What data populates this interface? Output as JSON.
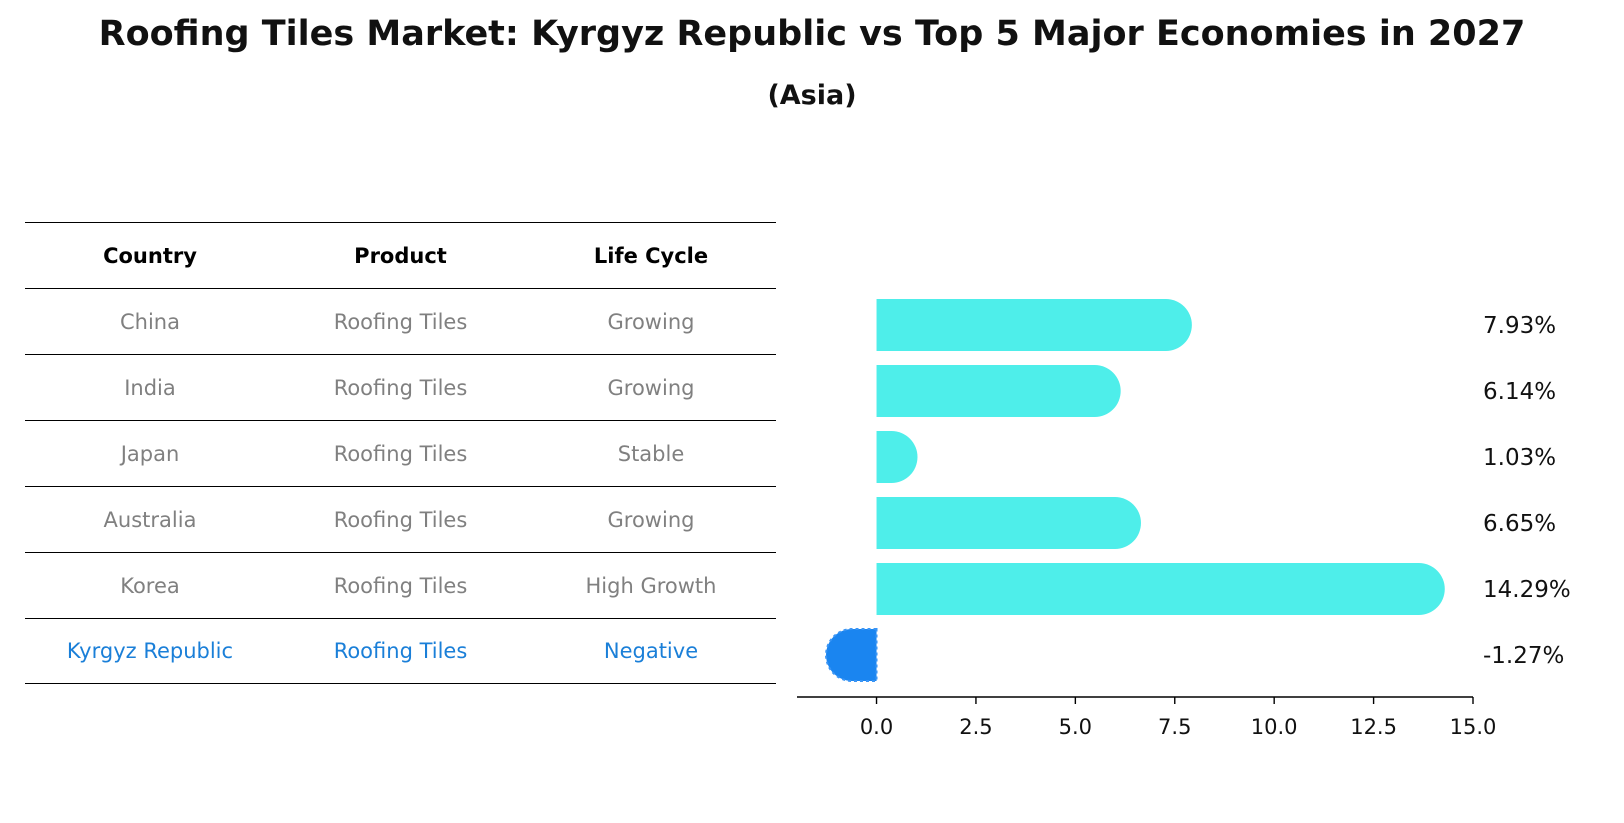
{
  "title": "Roofing Tiles Market: Kyrgyz Republic vs Top 5 Major Economies in 2027",
  "subtitle": "(Asia)",
  "table": {
    "headers": [
      "Country",
      "Product",
      "Life Cycle"
    ],
    "rows": [
      [
        "China",
        "Roofing Tiles",
        "Growing"
      ],
      [
        "India",
        "Roofing Tiles",
        "Growing"
      ],
      [
        "Japan",
        "Roofing Tiles",
        "Stable"
      ],
      [
        "Australia",
        "Roofing Tiles",
        "Growing"
      ],
      [
        "Korea",
        "Roofing Tiles",
        "High Growth"
      ],
      [
        "Kyrgyz Republic",
        "Roofing Tiles",
        "Negative"
      ]
    ]
  },
  "colors": {
    "bar": "#4eeeea",
    "highlight": "#1a85f0",
    "highlight_text": "#1a7fd8",
    "muted_text": "#808080"
  },
  "chart_data": {
    "type": "bar",
    "orientation": "horizontal",
    "categories": [
      "China",
      "India",
      "Japan",
      "Australia",
      "Korea",
      "Kyrgyz Republic"
    ],
    "values": [
      7.93,
      6.14,
      1.03,
      6.65,
      14.29,
      -1.27
    ],
    "value_labels": [
      "7.93%",
      "6.14%",
      "1.03%",
      "6.65%",
      "14.29%",
      "-1.27%"
    ],
    "highlight_category": "Kyrgyz Republic",
    "xlim": [
      -2.0,
      15.0
    ],
    "xticks": [
      0.0,
      2.5,
      5.0,
      7.5,
      10.0,
      12.5,
      15.0
    ],
    "xtick_labels": [
      "0.0",
      "2.5",
      "5.0",
      "7.5",
      "10.0",
      "12.5",
      "15.0"
    ],
    "grid": false,
    "title": "",
    "xlabel": "",
    "ylabel": ""
  }
}
